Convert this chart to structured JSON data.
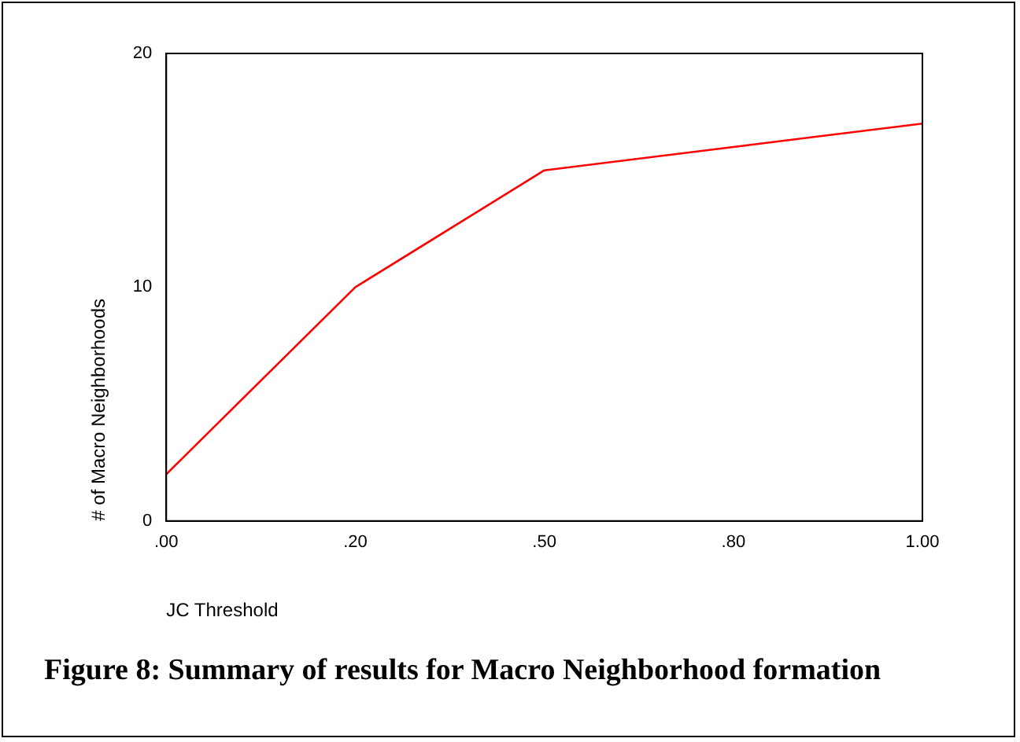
{
  "chart_data": {
    "type": "line",
    "title": "Figure 8: Summary of results for Macro Neighborhood formation",
    "xlabel": "JC Threshold",
    "ylabel": "# of Macro Neighborhoods",
    "categories": [
      ".00",
      ".20",
      ".50",
      ".80",
      "1.00"
    ],
    "series": [
      {
        "color": "#ff0000",
        "values": [
          2,
          10,
          15,
          16,
          17
        ]
      }
    ],
    "ylim": [
      0,
      20
    ],
    "yticks": [
      0,
      10,
      20
    ],
    "grid": false,
    "legend": false,
    "marker": "none",
    "line_style": "solid"
  }
}
